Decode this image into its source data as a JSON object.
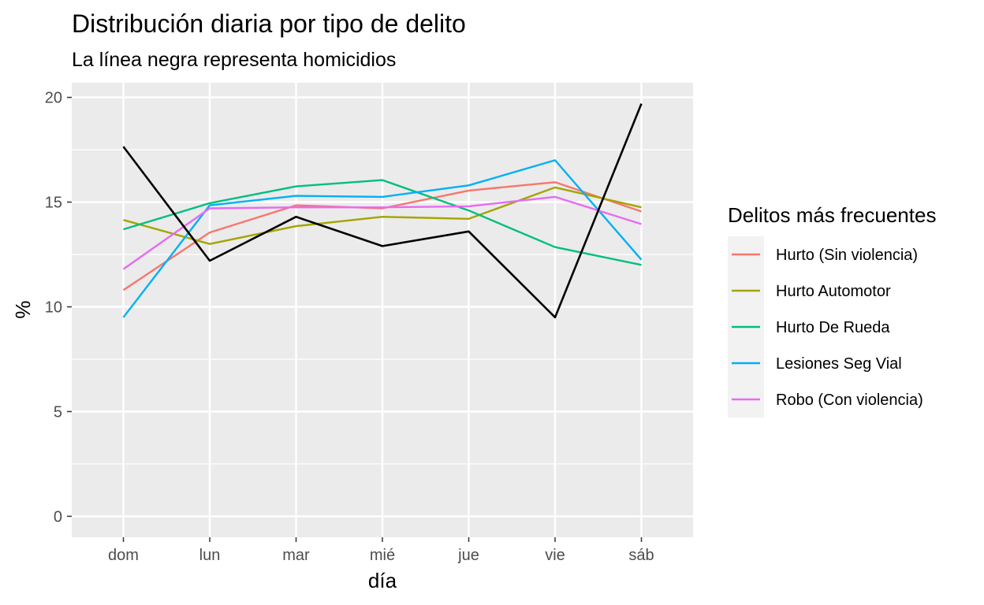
{
  "chart_data": {
    "type": "line",
    "title": "Distribución diaria por tipo de delito",
    "subtitle": "La línea negra representa homicidios",
    "xlabel": "día",
    "ylabel": "%",
    "categories": [
      "dom",
      "lun",
      "mar",
      "mié",
      "jue",
      "vie",
      "sáb"
    ],
    "ylim": [
      -1,
      20.7
    ],
    "yticks": [
      0,
      5,
      10,
      15,
      20
    ],
    "grid": true,
    "legend": {
      "title": "Delitos más frecuentes",
      "placement": "right"
    },
    "series": [
      {
        "name": "Hurto (Sin violencia)",
        "color": "#F8766D",
        "values": [
          10.8,
          13.55,
          14.85,
          14.7,
          15.55,
          15.95,
          14.55
        ]
      },
      {
        "name": "Hurto Automotor",
        "color": "#A3A500",
        "values": [
          14.15,
          13.0,
          13.85,
          14.3,
          14.2,
          15.7,
          14.75
        ]
      },
      {
        "name": "Hurto De Rueda",
        "color": "#00BF7D",
        "values": [
          13.7,
          14.95,
          15.75,
          16.05,
          14.6,
          12.85,
          12.0
        ]
      },
      {
        "name": "Lesiones Seg Vial",
        "color": "#00B0F6",
        "values": [
          9.5,
          14.85,
          15.3,
          15.25,
          15.8,
          17.0,
          12.25
        ]
      },
      {
        "name": "Robo (Con violencia)",
        "color": "#E76BF3",
        "values": [
          11.8,
          14.7,
          14.75,
          14.75,
          14.8,
          15.25,
          13.95
        ]
      }
    ],
    "homicidios": {
      "color": "#000000",
      "values": [
        17.65,
        12.2,
        14.3,
        12.9,
        13.6,
        9.5,
        19.7
      ]
    }
  }
}
